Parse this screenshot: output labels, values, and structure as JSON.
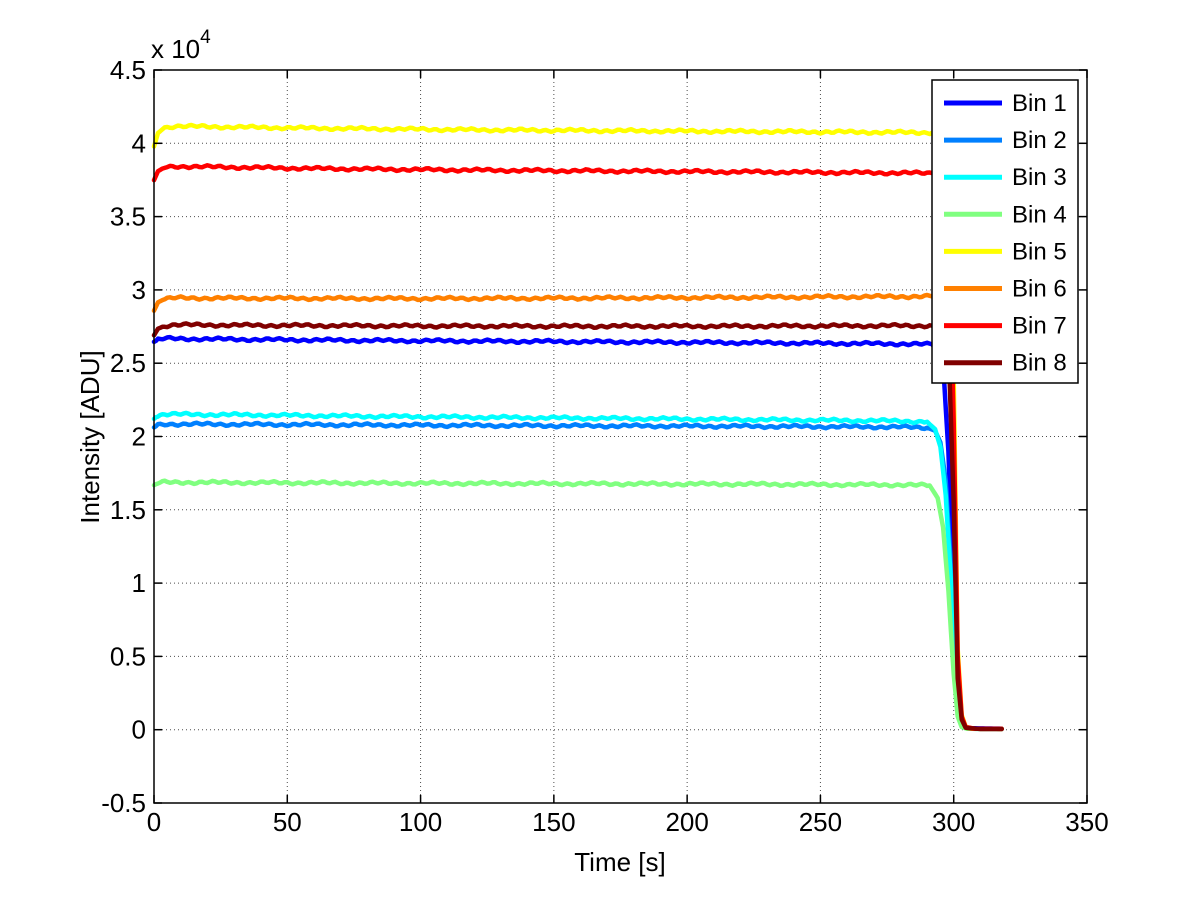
{
  "chart_data": {
    "type": "line",
    "title": "",
    "xlabel": "Time [s]",
    "ylabel": "Intensity [ADU]",
    "y_multiplier_base": "x 10",
    "y_multiplier_exponent": "4",
    "y_unit_note": "series values below are in units of 10^4 ADU as read from the axis",
    "xlim": [
      0,
      350
    ],
    "ylim": [
      -0.5,
      4.5
    ],
    "xticks": [
      0,
      50,
      100,
      150,
      200,
      250,
      300,
      350
    ],
    "yticks": [
      -0.5,
      0,
      0.5,
      1,
      1.5,
      2,
      2.5,
      3,
      3.5,
      4,
      4.5
    ],
    "xtick_labels": [
      "0",
      "50",
      "100",
      "150",
      "200",
      "250",
      "300",
      "350"
    ],
    "ytick_labels": [
      "-0.5",
      "0",
      "0.5",
      "1",
      "1.5",
      "2",
      "2.5",
      "3",
      "3.5",
      "4",
      "4.5"
    ],
    "grid": true,
    "grid_style": "dotted",
    "legend_position": "northeast",
    "series": [
      {
        "name": "Bin 1",
        "color": "#0000FF",
        "points": [
          [
            0,
            2.645
          ],
          [
            1.5,
            2.66
          ],
          [
            4,
            2.668
          ],
          [
            30,
            2.663
          ],
          [
            80,
            2.655
          ],
          [
            150,
            2.648
          ],
          [
            220,
            2.64
          ],
          [
            280,
            2.632
          ],
          [
            292,
            2.628
          ],
          [
            296,
            2.5
          ],
          [
            298,
            1.9
          ],
          [
            300,
            0.9
          ],
          [
            301.5,
            0.25
          ],
          [
            303,
            0.05
          ],
          [
            305,
            0.01
          ],
          [
            318,
            0.007
          ]
        ]
      },
      {
        "name": "Bin 2",
        "color": "#0080FF",
        "points": [
          [
            0,
            2.062
          ],
          [
            1.5,
            2.078
          ],
          [
            4,
            2.085
          ],
          [
            40,
            2.082
          ],
          [
            100,
            2.077
          ],
          [
            160,
            2.073
          ],
          [
            220,
            2.07
          ],
          [
            280,
            2.065
          ],
          [
            290,
            2.06
          ],
          [
            293,
            2.04
          ],
          [
            295,
            1.96
          ],
          [
            297,
            1.7
          ],
          [
            299,
            1.1
          ],
          [
            301,
            0.35
          ],
          [
            302.5,
            0.08
          ],
          [
            304,
            0.015
          ],
          [
            306,
            0.007
          ],
          [
            318,
            0.006
          ]
        ]
      },
      {
        "name": "Bin 3",
        "color": "#00FFFF",
        "points": [
          [
            0,
            2.12
          ],
          [
            1.5,
            2.142
          ],
          [
            4,
            2.152
          ],
          [
            30,
            2.148
          ],
          [
            80,
            2.138
          ],
          [
            150,
            2.127
          ],
          [
            220,
            2.116
          ],
          [
            280,
            2.106
          ],
          [
            290,
            2.1
          ],
          [
            293,
            2.05
          ],
          [
            295,
            1.93
          ],
          [
            297,
            1.6
          ],
          [
            299,
            1.0
          ],
          [
            301,
            0.3
          ],
          [
            302.5,
            0.07
          ],
          [
            304,
            0.013
          ],
          [
            306,
            0.006
          ],
          [
            318,
            0.005
          ]
        ]
      },
      {
        "name": "Bin 4",
        "color": "#80FF80",
        "points": [
          [
            0,
            1.668
          ],
          [
            1.5,
            1.682
          ],
          [
            4,
            1.688
          ],
          [
            40,
            1.685
          ],
          [
            100,
            1.681
          ],
          [
            160,
            1.678
          ],
          [
            220,
            1.675
          ],
          [
            280,
            1.67
          ],
          [
            291,
            1.666
          ],
          [
            294,
            1.58
          ],
          [
            296,
            1.38
          ],
          [
            298,
            0.95
          ],
          [
            300,
            0.38
          ],
          [
            301.5,
            0.09
          ],
          [
            303,
            0.018
          ],
          [
            305,
            0.006
          ],
          [
            318,
            0.005
          ]
        ]
      },
      {
        "name": "Bin 5",
        "color": "#FFFF00",
        "points": [
          [
            0,
            3.978
          ],
          [
            1.5,
            4.07
          ],
          [
            4,
            4.108
          ],
          [
            8,
            4.117
          ],
          [
            25,
            4.112
          ],
          [
            60,
            4.103
          ],
          [
            120,
            4.092
          ],
          [
            180,
            4.085
          ],
          [
            240,
            4.079
          ],
          [
            294,
            4.073
          ],
          [
            298,
            3.95
          ],
          [
            300,
            2.4
          ],
          [
            301.5,
            0.55
          ],
          [
            303,
            0.1
          ],
          [
            304.5,
            0.02
          ],
          [
            307,
            0.007
          ],
          [
            318,
            0.006
          ]
        ]
      },
      {
        "name": "Bin 6",
        "color": "#FF8000",
        "points": [
          [
            0,
            2.858
          ],
          [
            1.5,
            2.915
          ],
          [
            4,
            2.938
          ],
          [
            8,
            2.945
          ],
          [
            40,
            2.943
          ],
          [
            100,
            2.941
          ],
          [
            160,
            2.944
          ],
          [
            220,
            2.949
          ],
          [
            260,
            2.953
          ],
          [
            294,
            2.956
          ],
          [
            298,
            2.85
          ],
          [
            300,
            1.7
          ],
          [
            301.5,
            0.4
          ],
          [
            303,
            0.08
          ],
          [
            304.5,
            0.015
          ],
          [
            307,
            0.006
          ],
          [
            318,
            0.005
          ]
        ]
      },
      {
        "name": "Bin 7",
        "color": "#FF0000",
        "points": [
          [
            0,
            3.748
          ],
          [
            1.5,
            3.81
          ],
          [
            4,
            3.836
          ],
          [
            8,
            3.843
          ],
          [
            25,
            3.838
          ],
          [
            60,
            3.828
          ],
          [
            120,
            3.817
          ],
          [
            180,
            3.81
          ],
          [
            240,
            3.803
          ],
          [
            294,
            3.796
          ],
          [
            298,
            3.65
          ],
          [
            300,
            2.1
          ],
          [
            301.5,
            0.5
          ],
          [
            303,
            0.09
          ],
          [
            304.5,
            0.018
          ],
          [
            308,
            0.007
          ],
          [
            318,
            0.006
          ]
        ]
      },
      {
        "name": "Bin 8",
        "color": "#800000",
        "points": [
          [
            0,
            2.69
          ],
          [
            1.5,
            2.735
          ],
          [
            4,
            2.755
          ],
          [
            8,
            2.762
          ],
          [
            40,
            2.758
          ],
          [
            100,
            2.754
          ],
          [
            160,
            2.752
          ],
          [
            220,
            2.753
          ],
          [
            260,
            2.755
          ],
          [
            294,
            2.756
          ],
          [
            298,
            2.65
          ],
          [
            300,
            1.55
          ],
          [
            301.5,
            0.35
          ],
          [
            303,
            0.07
          ],
          [
            304.5,
            0.013
          ],
          [
            310,
            0.005
          ],
          [
            318,
            0.005
          ]
        ]
      }
    ]
  },
  "colors": {
    "background": "#ffffff",
    "axis": "#000000",
    "grid": "#4d4d4d",
    "legend_background": "#ffffff",
    "legend_border": "#000000"
  }
}
